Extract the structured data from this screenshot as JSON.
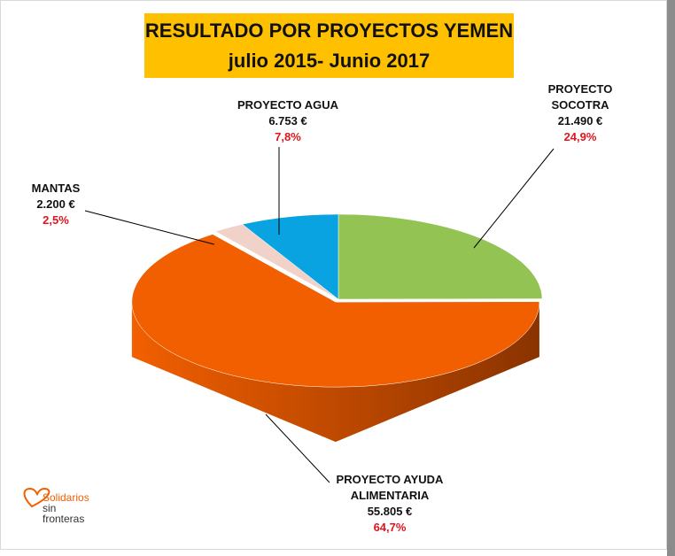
{
  "chart_data": {
    "type": "pie3d",
    "title": "RESULTADO POR PROYECTOS YEMEN",
    "subtitle": "julio 2015- Junio 2017",
    "categories": [
      "PROYECTO SOCOTRA",
      "PROYECTO AYUDA ALIMENTARIA",
      "MANTAS",
      "PROYECTO AGUA"
    ],
    "values": [
      24.9,
      64.7,
      2.5,
      7.8
    ],
    "value_labels": [
      "24,9%",
      "64,7%",
      "2,5%",
      "7,8%"
    ],
    "amounts": [
      21490,
      55805,
      2200,
      6753
    ],
    "amount_labels": [
      "21.490 €",
      "55.805 €",
      "2.200 €",
      "6.753 €"
    ],
    "colors": [
      "#92c353",
      "#f25f00",
      "#f0d2c8",
      "#0aa3e2"
    ],
    "side_colors": [
      "#5f8a30",
      "#8a3300",
      "#b89a92",
      "#06709c"
    ]
  },
  "logo": {
    "lines": [
      "Solidarios",
      "sin",
      "fronteras"
    ]
  }
}
